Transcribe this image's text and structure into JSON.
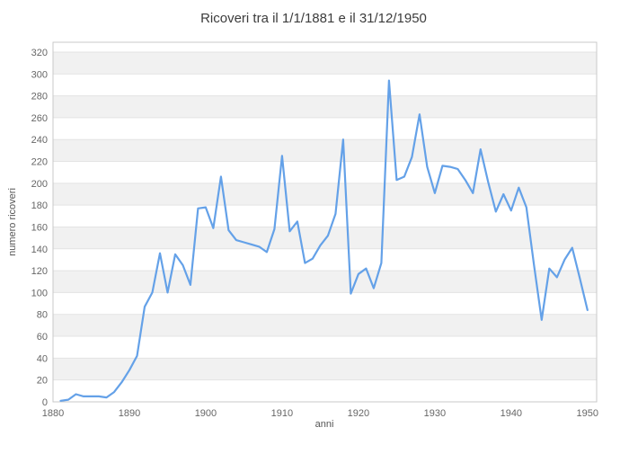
{
  "title": "Ricoveri tra il 1/1/1881 e il 31/12/1950",
  "chart_data": {
    "type": "line",
    "title": "Ricoveri tra il 1/1/1881 e il 31/12/1950",
    "xlabel": "anni",
    "ylabel": "numero ricoveri",
    "x": [
      1881,
      1882,
      1883,
      1884,
      1885,
      1886,
      1887,
      1888,
      1889,
      1890,
      1891,
      1892,
      1893,
      1894,
      1895,
      1896,
      1897,
      1898,
      1899,
      1900,
      1901,
      1902,
      1903,
      1904,
      1905,
      1906,
      1907,
      1908,
      1909,
      1910,
      1911,
      1912,
      1913,
      1914,
      1915,
      1916,
      1917,
      1918,
      1919,
      1920,
      1921,
      1922,
      1923,
      1924,
      1925,
      1926,
      1927,
      1928,
      1929,
      1930,
      1931,
      1932,
      1933,
      1934,
      1935,
      1936,
      1937,
      1938,
      1939,
      1940,
      1941,
      1942,
      1943,
      1944,
      1945,
      1946,
      1947,
      1948,
      1949,
      1950
    ],
    "values": [
      1,
      2,
      7,
      5,
      5,
      5,
      4,
      9,
      18,
      29,
      42,
      87,
      100,
      136,
      100,
      135,
      125,
      107,
      177,
      178,
      159,
      206,
      157,
      148,
      146,
      144,
      142,
      137,
      158,
      225,
      156,
      165,
      127,
      131,
      143,
      152,
      172,
      240,
      99,
      117,
      122,
      104,
      127,
      294,
      203,
      206,
      224,
      263,
      215,
      191,
      216,
      215,
      213,
      203,
      191,
      231,
      201,
      174,
      190,
      175,
      196,
      178,
      125,
      75,
      122,
      114,
      130,
      141,
      113,
      84
    ],
    "xticks": [
      1880,
      1890,
      1900,
      1910,
      1920,
      1930,
      1940,
      1950
    ],
    "yticks": [
      0,
      20,
      40,
      60,
      80,
      100,
      120,
      140,
      160,
      180,
      200,
      220,
      240,
      260,
      280,
      300,
      320
    ],
    "xlim": [
      1880,
      1951.2
    ],
    "ylim": [
      0,
      329
    ],
    "grid": true,
    "legend": "none",
    "band_pattern": "alternating horizontal 20-unit bands, gray on 20-40, 60-80, ... 300-320",
    "series_name": "numero ricoveri"
  },
  "colors": {
    "line": "#64a1e8",
    "band": "#f1f1f1",
    "grid": "#e3e3e3",
    "border": "#c9c9c9",
    "title_text": "#3c3c3c",
    "tick_text": "#666666",
    "axis_text": "#555555",
    "background": "#ffffff"
  }
}
